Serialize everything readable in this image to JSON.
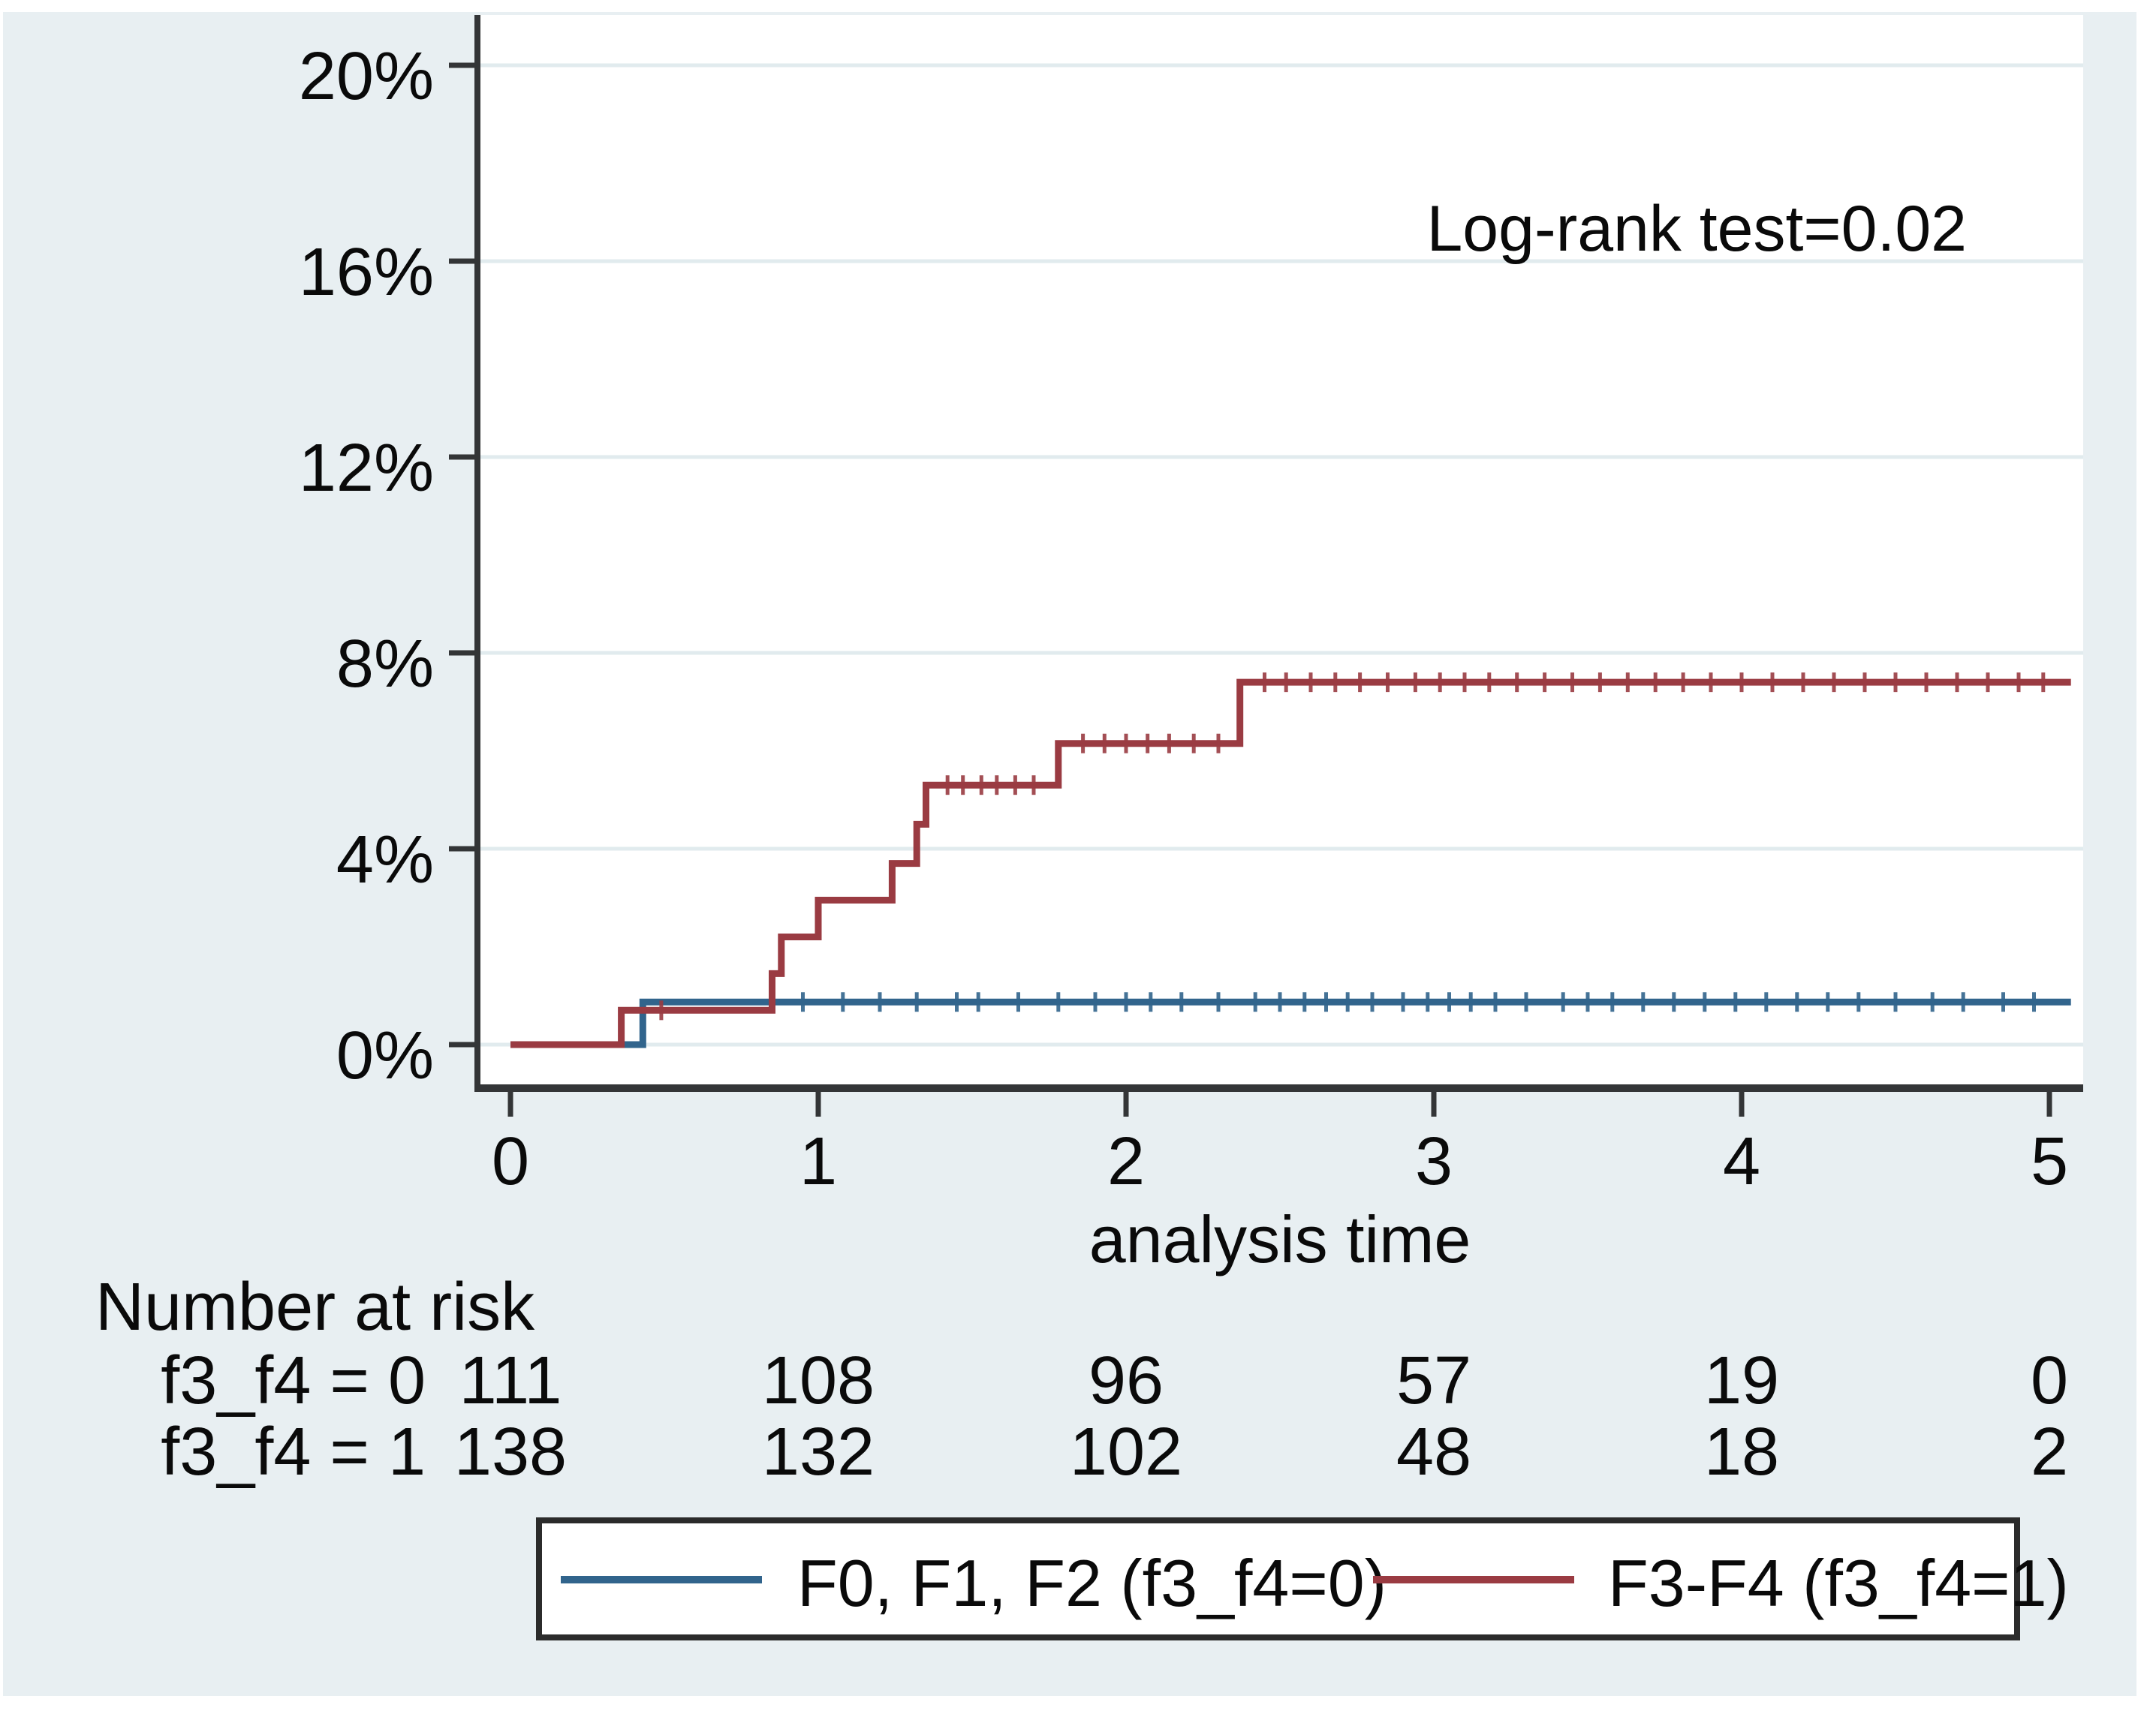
{
  "figure": {
    "background_color": "#e8eff2",
    "plot_background_color": "#ffffff",
    "gridline_color": "#e1ebee",
    "axis_color": "#333537",
    "text_color": "#0a0a0a",
    "legend_border_color": "#2b2b2b"
  },
  "annotation": {
    "log_rank_label": "Log-rank test=0.02"
  },
  "chart_data": {
    "type": "line",
    "subtype": "kaplan-meier-cumulative-incidence-steps",
    "title": "",
    "xlabel": "analysis time",
    "ylabel": "",
    "x_ticks": [
      0,
      1,
      2,
      3,
      4,
      5
    ],
    "y_ticks_percent": [
      0,
      4,
      8,
      12,
      16,
      20
    ],
    "y_tick_suffix": "%",
    "xlim": [
      0,
      5.1
    ],
    "ylim_percent": [
      0,
      20
    ],
    "grid": true,
    "legend_position": "bottom",
    "series": [
      {
        "name": "F0, F1, F2 (f3_f4=0)",
        "color": "#31648c",
        "steps": [
          [
            0,
            0
          ],
          [
            0.43,
            0
          ],
          [
            0.43,
            0.87
          ],
          [
            5.07,
            0.87
          ]
        ],
        "censor_ticks": [
          0.95,
          1.08,
          1.2,
          1.32,
          1.45,
          1.52,
          1.65,
          1.78,
          1.9,
          2.0,
          2.08,
          2.18,
          2.3,
          2.42,
          2.5,
          2.58,
          2.65,
          2.72,
          2.8,
          2.9,
          2.98,
          3.05,
          3.12,
          3.2,
          3.3,
          3.42,
          3.5,
          3.58,
          3.68,
          3.78,
          3.88,
          3.98,
          4.08,
          4.18,
          4.28,
          4.38,
          4.5,
          4.62,
          4.72,
          4.85,
          4.95
        ]
      },
      {
        "name": "F3-F4 (f3_f4=1)",
        "color": "#9a3b42",
        "steps": [
          [
            0,
            0
          ],
          [
            0.36,
            0
          ],
          [
            0.36,
            0.7
          ],
          [
            0.85,
            0.7
          ],
          [
            0.85,
            1.45
          ],
          [
            0.88,
            1.45
          ],
          [
            0.88,
            2.2
          ],
          [
            1.0,
            2.2
          ],
          [
            1.0,
            2.95
          ],
          [
            1.24,
            2.95
          ],
          [
            1.24,
            3.7
          ],
          [
            1.32,
            3.7
          ],
          [
            1.32,
            4.5
          ],
          [
            1.35,
            4.5
          ],
          [
            1.35,
            5.3
          ],
          [
            1.78,
            5.3
          ],
          [
            1.78,
            6.15
          ],
          [
            2.37,
            6.15
          ],
          [
            2.37,
            7.4
          ],
          [
            5.07,
            7.4
          ]
        ],
        "censor_ticks": [
          0.49,
          1.42,
          1.47,
          1.53,
          1.58,
          1.64,
          1.7,
          1.86,
          1.93,
          2.0,
          2.07,
          2.14,
          2.22,
          2.3,
          2.45,
          2.52,
          2.6,
          2.68,
          2.76,
          2.85,
          2.94,
          3.02,
          3.1,
          3.18,
          3.27,
          3.36,
          3.45,
          3.54,
          3.63,
          3.72,
          3.81,
          3.9,
          4.0,
          4.1,
          4.2,
          4.3,
          4.4,
          4.5,
          4.6,
          4.7,
          4.8,
          4.9,
          4.98
        ]
      }
    ]
  },
  "risk_table": {
    "title": "Number at risk",
    "rows": [
      {
        "label": "f3_f4 = 0",
        "counts": [
          "111",
          "108",
          "96",
          "57",
          "19",
          "0"
        ]
      },
      {
        "label": "f3_f4 = 1",
        "counts": [
          "138",
          "132",
          "102",
          "48",
          "18",
          "2"
        ]
      }
    ]
  },
  "legend": {
    "entries": [
      {
        "label": "F0, F1, F2 (f3_f4=0)",
        "color": "#31648c"
      },
      {
        "label": "F3-F4 (f3_f4=1)",
        "color": "#9a3b42"
      }
    ]
  }
}
